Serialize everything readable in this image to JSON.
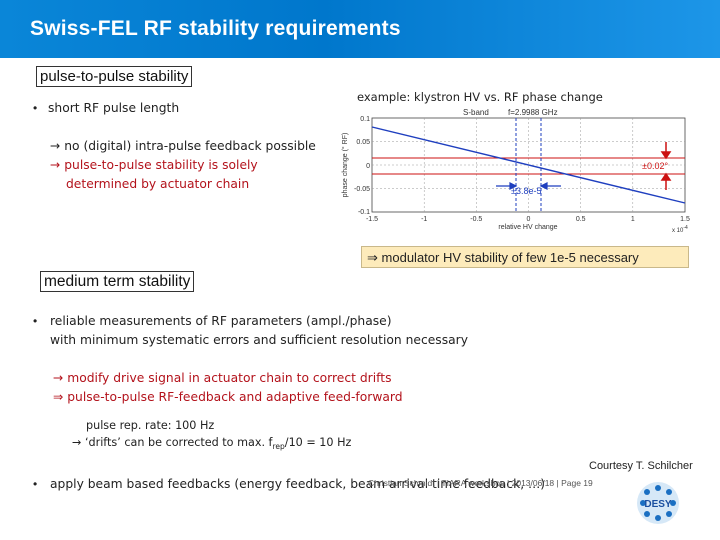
{
  "header": {
    "title": "Swiss-FEL RF stability requirements"
  },
  "section1": {
    "label": "pulse-to-pulse stability",
    "bullet": "short RF pulse length",
    "arrow_line1": "no (digital) intra-pulse feedback possible",
    "arrow_line2": "pulse-to-pulse stability is solely",
    "arrow_line3": "determined by actuator chain"
  },
  "plot": {
    "caption": "example: klystron HV vs. RF phase change",
    "title_left": "S-band",
    "title_right": "f=2.9988 GHz",
    "ylabel": "phase change (° RF)",
    "xlabel": "relative HV change",
    "xscale": "x 10",
    "xscale_exp": "-4",
    "yticks": [
      "0.1",
      "0.05",
      "0",
      "-0.05",
      "-0.1"
    ],
    "xticks": [
      "-1.5",
      "-1",
      "-0.5",
      "0",
      "0.5",
      "1",
      "1.5"
    ],
    "annot_phase": "±0.02°",
    "annot_hv": "±3.8e-5"
  },
  "chart_data": {
    "type": "line",
    "title": "S-band   f=2.9988 GHz",
    "xlabel": "relative HV change",
    "ylabel": "phase change (° RF)",
    "x": [
      -1.5,
      1.5
    ],
    "series": [
      {
        "values": [
          0.08,
          -0.08
        ]
      }
    ],
    "xlim": [
      -1.5,
      1.5
    ],
    "ylim": [
      -0.1,
      0.1
    ],
    "x_multiplier": "x 10^-4",
    "annotations": [
      "±0.02°",
      "±3.8e-5"
    ],
    "grid": true,
    "line_color": "#1f3fbf",
    "highlight_color": "#cc1111"
  },
  "note": {
    "text": "modulator HV stability of few 1e-5 necessary",
    "arrow": "⇒"
  },
  "section2": {
    "label": "medium term stability",
    "bullet_line1": "reliable measurements of RF parameters (ampl./phase)",
    "bullet_line2": "with minimum systematic errors and sufficient resolution necessary",
    "red_line1": "modify drive signal in actuator chain to correct drifts",
    "red_line2": "pulse-to-pulse RF-feedback and adaptive feed-forward",
    "rep_line1": "pulse rep. rate: 100 Hz",
    "rep_line2a": "‘drifts’ can be corrected to max. f",
    "rep_line2_sub": "rep",
    "rep_line2b": "/10 = 10 Hz",
    "bullet3": "apply beam based feedbacks (energy feedback, beam arrival time feedback, …)"
  },
  "footer": {
    "courtesy": "Courtesy T. Schilcher",
    "text": "Christian Schmidt | TIARA workshop | 2013/06/18 | Page 19",
    "logo": "DESY"
  }
}
